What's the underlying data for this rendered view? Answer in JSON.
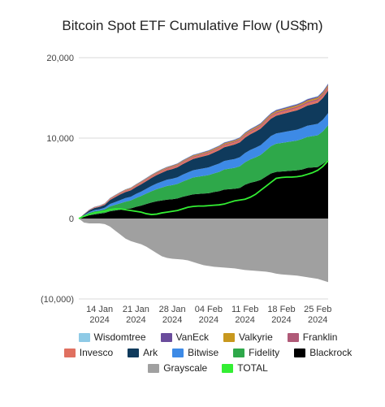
{
  "chart_data": {
    "type": "area",
    "title": "Bitcoin Spot ETF Cumulative Flow (US$m)",
    "xlabel": "",
    "ylabel": "",
    "ylim": [
      -10000,
      20000
    ],
    "y_ticks": [
      {
        "value": 20000,
        "label": "20,000"
      },
      {
        "value": 10000,
        "label": "10,000"
      },
      {
        "value": 0,
        "label": "0"
      },
      {
        "value": -10000,
        "label": "(10,000)"
      }
    ],
    "x_ticks": [
      {
        "day": 4,
        "line1": "14 Jan",
        "line2": "2024"
      },
      {
        "day": 11,
        "line1": "21 Jan",
        "line2": "2024"
      },
      {
        "day": 18,
        "line1": "28 Jan",
        "line2": "2024"
      },
      {
        "day": 25,
        "line1": "04 Feb",
        "line2": "2024"
      },
      {
        "day": 32,
        "line1": "11 Feb",
        "line2": "2024"
      },
      {
        "day": 39,
        "line1": "18 Feb",
        "line2": "2024"
      },
      {
        "day": 46,
        "line1": "25 Feb",
        "line2": "2024"
      }
    ],
    "x": [
      0,
      1,
      2,
      3,
      4,
      5,
      6,
      7,
      8,
      9,
      10,
      11,
      12,
      13,
      14,
      15,
      16,
      17,
      18,
      19,
      20,
      21,
      22,
      23,
      24,
      25,
      26,
      27,
      28,
      29,
      30,
      31,
      32,
      33,
      34,
      35,
      36,
      37,
      38,
      39,
      40,
      41,
      42,
      43,
      44,
      45,
      46,
      47,
      48
    ],
    "grid": true,
    "legend_position": "bottom",
    "series": [
      {
        "name": "Blackrock",
        "color": "#000000",
        "values": [
          0,
          200,
          400,
          500,
          600,
          700,
          900,
          1000,
          1100,
          1200,
          1250,
          1450,
          1600,
          1800,
          2000,
          2150,
          2250,
          2350,
          2400,
          2500,
          2700,
          2850,
          3000,
          3050,
          3100,
          3150,
          3300,
          3400,
          3600,
          3650,
          3700,
          3800,
          4200,
          4450,
          4600,
          4800,
          5200,
          5600,
          5800,
          5850,
          5900,
          5950,
          6000,
          6100,
          6300,
          6350,
          6400,
          6800,
          7300
        ]
      },
      {
        "name": "Fidelity",
        "color": "#2ea84a",
        "values": [
          0,
          150,
          300,
          400,
          400,
          450,
          600,
          700,
          800,
          900,
          1000,
          1100,
          1200,
          1300,
          1400,
          1500,
          1600,
          1700,
          1750,
          1800,
          1900,
          2000,
          2100,
          2150,
          2200,
          2250,
          2300,
          2400,
          2500,
          2550,
          2600,
          2700,
          2800,
          2900,
          3000,
          3100,
          3250,
          3400,
          3500,
          3550,
          3600,
          3650,
          3700,
          3800,
          3850,
          3900,
          3950,
          4050,
          4300
        ]
      },
      {
        "name": "Bitwise",
        "color": "#3d8ae6",
        "values": [
          0,
          50,
          100,
          150,
          150,
          200,
          300,
          350,
          400,
          450,
          450,
          500,
          550,
          600,
          650,
          700,
          750,
          780,
          800,
          820,
          850,
          880,
          900,
          920,
          940,
          960,
          1000,
          1030,
          1060,
          1080,
          1100,
          1120,
          1150,
          1170,
          1200,
          1220,
          1240,
          1260,
          1280,
          1300,
          1320,
          1340,
          1350,
          1370,
          1390,
          1410,
          1430,
          1450,
          1500
        ]
      },
      {
        "name": "Ark",
        "color": "#0f3a5c",
        "values": [
          0,
          100,
          200,
          250,
          300,
          350,
          500,
          600,
          700,
          750,
          800,
          850,
          900,
          950,
          1000,
          1050,
          1100,
          1150,
          1200,
          1250,
          1300,
          1350,
          1400,
          1450,
          1500,
          1550,
          1600,
          1650,
          1700,
          1750,
          1800,
          1850,
          1900,
          1950,
          2000,
          2050,
          2100,
          2150,
          2200,
          2250,
          2300,
          2350,
          2400,
          2450,
          2500,
          2550,
          2600,
          2700,
          2800
        ]
      },
      {
        "name": "Invesco",
        "color": "#e07060",
        "values": [
          0,
          20,
          40,
          60,
          60,
          80,
          100,
          120,
          130,
          140,
          150,
          150,
          160,
          160,
          170,
          170,
          180,
          180,
          190,
          190,
          200,
          200,
          200,
          200,
          210,
          210,
          210,
          220,
          220,
          220,
          230,
          230,
          230,
          240,
          240,
          240,
          250,
          250,
          250,
          260,
          260,
          260,
          270,
          270,
          270,
          280,
          280,
          280,
          290
        ]
      },
      {
        "name": "Franklin",
        "color": "#b05a78",
        "values": [
          0,
          20,
          30,
          40,
          40,
          50,
          60,
          70,
          70,
          80,
          80,
          90,
          90,
          100,
          100,
          100,
          110,
          110,
          110,
          120,
          120,
          120,
          130,
          130,
          130,
          140,
          140,
          140,
          150,
          150,
          150,
          160,
          160,
          160,
          170,
          170,
          170,
          170,
          180,
          180,
          180,
          190,
          190,
          190,
          200,
          200,
          200,
          210,
          210
        ]
      },
      {
        "name": "Valkyrie",
        "color": "#c8981e",
        "values": [
          0,
          10,
          20,
          30,
          30,
          40,
          40,
          50,
          50,
          60,
          60,
          60,
          70,
          70,
          70,
          80,
          80,
          80,
          90,
          90,
          90,
          90,
          100,
          100,
          100,
          110,
          110,
          110,
          110,
          120,
          120,
          120,
          130,
          130,
          130,
          130,
          140,
          140,
          140,
          140,
          150,
          150,
          150,
          150,
          160,
          160,
          160,
          160,
          170
        ]
      },
      {
        "name": "VanEck",
        "color": "#6a4c9c",
        "values": [
          0,
          10,
          20,
          20,
          30,
          30,
          40,
          40,
          40,
          50,
          50,
          50,
          60,
          60,
          60,
          60,
          70,
          70,
          70,
          70,
          80,
          80,
          80,
          80,
          90,
          90,
          90,
          90,
          100,
          100,
          100,
          100,
          110,
          110,
          110,
          120,
          120,
          120,
          130,
          130,
          130,
          140,
          140,
          140,
          150,
          150,
          150,
          160,
          170
        ]
      },
      {
        "name": "Wisdomtree",
        "color": "#8ecae6",
        "values": [
          0,
          5,
          10,
          10,
          15,
          15,
          20,
          20,
          20,
          25,
          25,
          25,
          30,
          30,
          30,
          30,
          35,
          35,
          35,
          35,
          40,
          40,
          40,
          40,
          40,
          45,
          45,
          45,
          45,
          45,
          50,
          50,
          50,
          50,
          50,
          55,
          55,
          55,
          55,
          55,
          60,
          60,
          60,
          60,
          60,
          65,
          65,
          65,
          70
        ]
      },
      {
        "name": "Grayscale",
        "color": "#a0a0a0",
        "values": [
          0,
          -500,
          -600,
          -600,
          -600,
          -700,
          -1000,
          -1500,
          -2000,
          -2500,
          -2800,
          -3000,
          -3200,
          -3500,
          -3900,
          -4300,
          -4700,
          -4900,
          -5000,
          -5050,
          -5100,
          -5200,
          -5400,
          -5600,
          -5800,
          -5900,
          -6000,
          -6050,
          -6100,
          -6150,
          -6200,
          -6300,
          -6400,
          -6450,
          -6500,
          -6550,
          -6600,
          -6700,
          -6850,
          -6950,
          -7000,
          -7050,
          -7100,
          -7200,
          -7300,
          -7400,
          -7500,
          -7700,
          -7900
        ]
      },
      {
        "name": "TOTAL",
        "color": "#33ee33",
        "values": [
          0,
          300,
          500,
          700,
          800,
          900,
          1100,
          1200,
          1200,
          1100,
          1000,
          900,
          800,
          600,
          500,
          550,
          700,
          800,
          900,
          1000,
          1200,
          1400,
          1500,
          1550,
          1550,
          1600,
          1650,
          1700,
          1800,
          2000,
          2200,
          2300,
          2400,
          2650,
          3000,
          3500,
          4000,
          4500,
          5000,
          5100,
          5150,
          5150,
          5200,
          5300,
          5500,
          5700,
          6000,
          6500,
          7200
        ]
      }
    ],
    "legend_rows": [
      [
        "Wisdomtree",
        "VanEck",
        "Valkyrie",
        "Franklin"
      ],
      [
        "Invesco",
        "Ark",
        "Bitwise",
        "Fidelity",
        "Blackrock"
      ],
      [
        "Grayscale",
        "TOTAL"
      ]
    ]
  }
}
